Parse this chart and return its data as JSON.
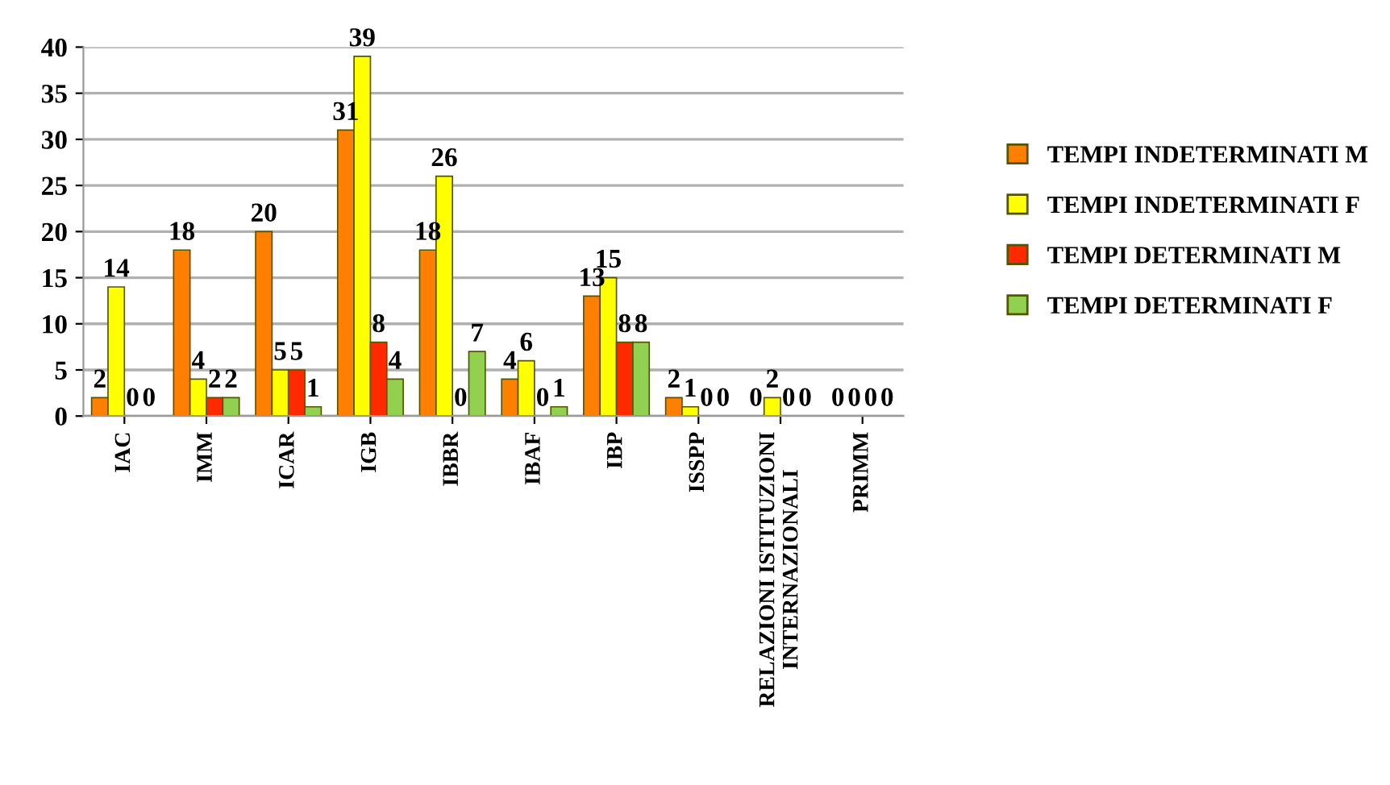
{
  "chart_data": {
    "type": "bar",
    "categories": [
      "IAC",
      "IMM",
      "ICAR",
      "IGB",
      "IBBR",
      "IBAF",
      "IBP",
      "ISSPP",
      "RELAZIONI ISTITUZIONI\nINTERNAZIONALI",
      "PRIMM"
    ],
    "series": [
      {
        "name": "TEMPI INDETERMINATI M",
        "color": "#ff7f00",
        "values": [
          2,
          18,
          20,
          31,
          18,
          4,
          13,
          2,
          0,
          0
        ]
      },
      {
        "name": "TEMPI INDETERMINATI F",
        "color": "#ffff00",
        "values": [
          14,
          4,
          5,
          39,
          26,
          6,
          15,
          1,
          2,
          0
        ]
      },
      {
        "name": "TEMPI DETERMINATI M",
        "color": "#ff2a00",
        "values": [
          0,
          2,
          5,
          8,
          0,
          0,
          8,
          0,
          0,
          0
        ]
      },
      {
        "name": "TEMPI DETERMINATI F",
        "color": "#92d050",
        "values": [
          0,
          2,
          1,
          4,
          7,
          1,
          8,
          0,
          0,
          0
        ]
      }
    ],
    "ylim": [
      0,
      40
    ],
    "yticks": [
      0,
      5,
      10,
      15,
      20,
      25,
      30,
      35,
      40
    ],
    "grid": "y",
    "legend": "right",
    "data_labels": true
  }
}
